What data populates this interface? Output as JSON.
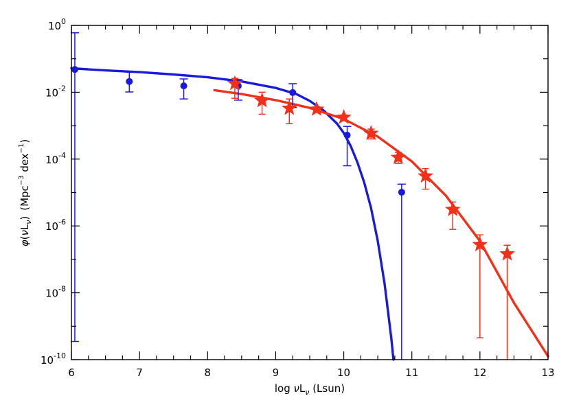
{
  "chart_data": {
    "type": "scatter",
    "xlabel_parts": {
      "pre": "log ",
      "nu": "ν",
      "L": "L",
      "sub": "ν",
      "post": " (Lsun)"
    },
    "ylabel_parts": {
      "phi": "φ",
      "open": "(",
      "nu": "ν",
      "L": "L",
      "sub": "ν",
      "close": ")",
      "units_pre": "(Mpc",
      "exp1": "−3",
      "units_mid": " dex",
      "exp2": "−1",
      "units_post": ")"
    },
    "xlim": [
      6,
      13
    ],
    "ylim_log10": [
      -10,
      0
    ],
    "x_ticks": [
      "6",
      "7",
      "8",
      "9",
      "10",
      "11",
      "12",
      "13"
    ],
    "y_ticks": [
      {
        "base": "10",
        "exp": "0",
        "value": 1
      },
      {
        "base": "10",
        "exp": "-2",
        "value": 0.01
      },
      {
        "base": "10",
        "exp": "-4",
        "value": 0.0001
      },
      {
        "base": "10",
        "exp": "-6",
        "value": 1e-06
      },
      {
        "base": "10",
        "exp": "-8",
        "value": 1e-08
      },
      {
        "base": "10",
        "exp": "-10",
        "value": 1e-10
      }
    ],
    "series": [
      {
        "marker": "circle",
        "color": "#1a1adb",
        "points": [
          {
            "x": 6.05,
            "y": 0.048,
            "ylo": 3.5e-10,
            "yhi": 0.6
          },
          {
            "x": 6.85,
            "y": 0.021,
            "ylo": 0.0102,
            "yhi": 0.04
          },
          {
            "x": 7.65,
            "y": 0.0155,
            "ylo": 0.0063,
            "yhi": 0.025
          },
          {
            "x": 8.45,
            "y": 0.0155,
            "ylo": 0.0058,
            "yhi": 0.024
          },
          {
            "x": 9.25,
            "y": 0.0098,
            "ylo": 0.0035,
            "yhi": 0.018
          },
          {
            "x": 10.05,
            "y": 0.00052,
            "ylo": 6.3e-05,
            "yhi": 0.00095
          },
          {
            "x": 10.85,
            "y": 1.02e-05,
            "ylo": 1e-10,
            "yhi": 1.78e-05
          }
        ]
      },
      {
        "marker": "star",
        "color": "#f2301a",
        "points": [
          {
            "x": 8.4,
            "y": 0.0182,
            "ylo": 0.0066,
            "yhi": 0.026
          },
          {
            "x": 8.8,
            "y": 0.0056,
            "ylo": 0.0022,
            "yhi": 0.01
          },
          {
            "x": 9.2,
            "y": 0.0033,
            "ylo": 0.00115,
            "yhi": 0.0063
          },
          {
            "x": 9.6,
            "y": 0.0031,
            "ylo": 0.0025,
            "yhi": 0.0036
          },
          {
            "x": 10.0,
            "y": 0.00178,
            "ylo": 0.00141,
            "yhi": 0.0021
          },
          {
            "x": 10.4,
            "y": 0.00059,
            "ylo": 0.0004,
            "yhi": 0.00079
          },
          {
            "x": 10.8,
            "y": 0.000112,
            "ylo": 7.4e-05,
            "yhi": 0.000158
          },
          {
            "x": 11.2,
            "y": 3.1e-05,
            "ylo": 1.26e-05,
            "yhi": 5.2e-05
          },
          {
            "x": 11.6,
            "y": 3.1e-06,
            "ylo": 7.9e-07,
            "yhi": 5.2e-06
          },
          {
            "x": 12.0,
            "y": 2.75e-07,
            "ylo": 4.5e-10,
            "yhi": 5.4e-07
          },
          {
            "x": 12.4,
            "y": 1.45e-07,
            "ylo": 1e-10,
            "yhi": 2.65e-07
          }
        ]
      }
    ],
    "fit_curves": [
      {
        "color": "#1a1adb",
        "points": [
          [
            6.0,
            0.052
          ],
          [
            6.5,
            0.045
          ],
          [
            7.0,
            0.04
          ],
          [
            7.5,
            0.034
          ],
          [
            8.0,
            0.028
          ],
          [
            8.5,
            0.021
          ],
          [
            9.0,
            0.0135
          ],
          [
            9.3,
            0.0089
          ],
          [
            9.5,
            0.0055
          ],
          [
            9.7,
            0.0029
          ],
          [
            9.9,
            0.00115
          ],
          [
            10.0,
            0.0006
          ],
          [
            10.1,
            0.00025
          ],
          [
            10.2,
            8e-05
          ],
          [
            10.3,
            2e-05
          ],
          [
            10.4,
            3.5e-06
          ],
          [
            10.5,
            3.5e-07
          ],
          [
            10.6,
            1.8e-08
          ],
          [
            10.7,
            4e-10
          ],
          [
            10.73,
            1e-10
          ]
        ]
      },
      {
        "color": "#f2301a",
        "points": [
          [
            8.1,
            0.0115
          ],
          [
            8.5,
            0.0088
          ],
          [
            9.0,
            0.0058
          ],
          [
            9.5,
            0.0034
          ],
          [
            10.0,
            0.00158
          ],
          [
            10.5,
            0.00047
          ],
          [
            11.0,
            8.5e-05
          ],
          [
            11.5,
            8e-06
          ],
          [
            12.0,
            3.5e-07
          ],
          [
            12.5,
            5e-09
          ],
          [
            13.0,
            1.26e-10
          ]
        ]
      }
    ]
  }
}
